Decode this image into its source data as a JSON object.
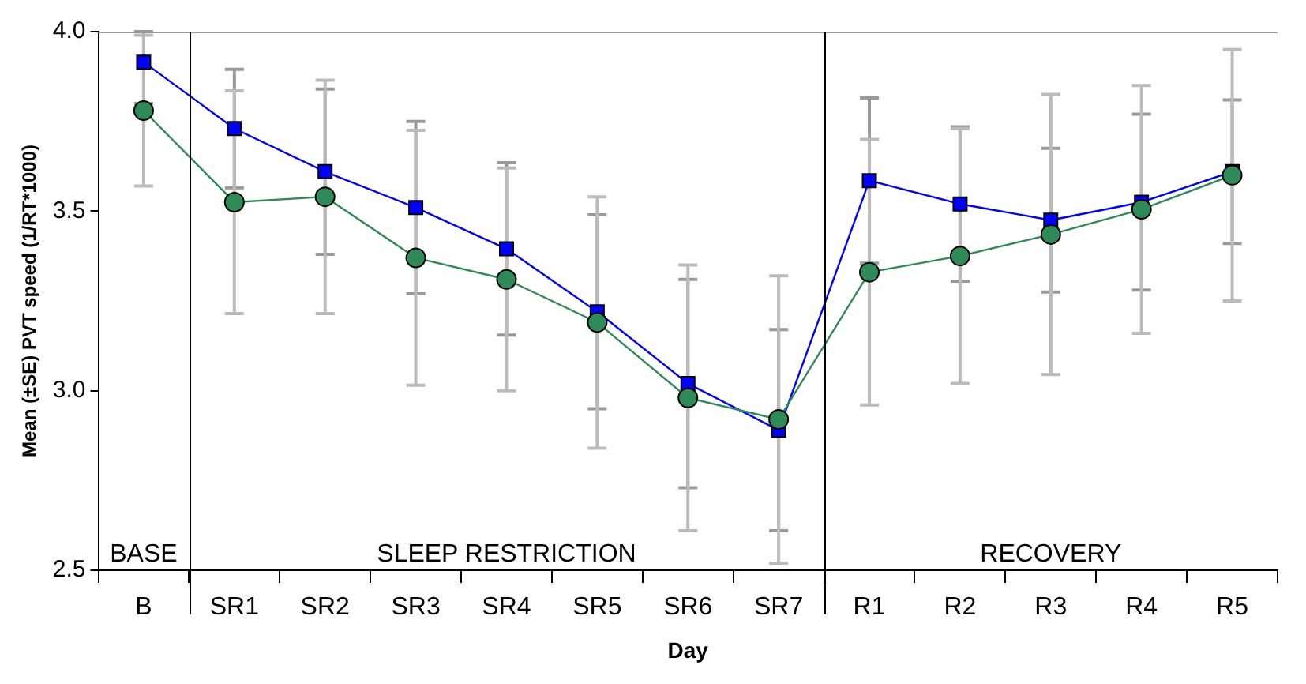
{
  "chart_data": {
    "type": "line",
    "xlabel": "Day",
    "ylabel": "Mean (±SE) PVT speed (1/RT*1000)",
    "categories": [
      "B",
      "SR1",
      "SR2",
      "SR3",
      "SR4",
      "SR5",
      "SR6",
      "SR7",
      "R1",
      "R2",
      "R3",
      "R4",
      "R5"
    ],
    "series": [
      {
        "color": "#0000ff",
        "marker": "square",
        "values": [
          3.915,
          3.73,
          3.61,
          3.51,
          3.395,
          3.22,
          3.02,
          2.89,
          3.585,
          3.52,
          3.475,
          3.525,
          3.61
        ],
        "errors": [
          [
            3.8,
            4.0
          ],
          0.165,
          0.23,
          0.24,
          0.24,
          0.27,
          0.29,
          0.28,
          0.23,
          0.215,
          0.2,
          0.245,
          0.2
        ]
      },
      {
        "color": "#2e8b57",
        "marker": "circle",
        "values": [
          3.78,
          3.525,
          3.54,
          3.37,
          3.31,
          3.19,
          2.98,
          2.92,
          3.33,
          3.375,
          3.435,
          3.505,
          3.6
        ],
        "errors": [
          0.21,
          0.31,
          0.325,
          0.355,
          0.31,
          0.35,
          0.37,
          0.4,
          0.37,
          0.355,
          0.39,
          0.345,
          0.35
        ]
      }
    ],
    "ylim": [
      2.5,
      4.0
    ],
    "yticks": [
      2.5,
      {
        "value": 3.0,
        "label": "3.0"
      },
      3.5,
      {
        "value": 4.0,
        "label": "4.0"
      }
    ],
    "annotations": [
      "BASE",
      "SLEEP RESTRICTION",
      "RECOVERY"
    ],
    "grid": false,
    "legend": false,
    "line_style": "solid"
  }
}
